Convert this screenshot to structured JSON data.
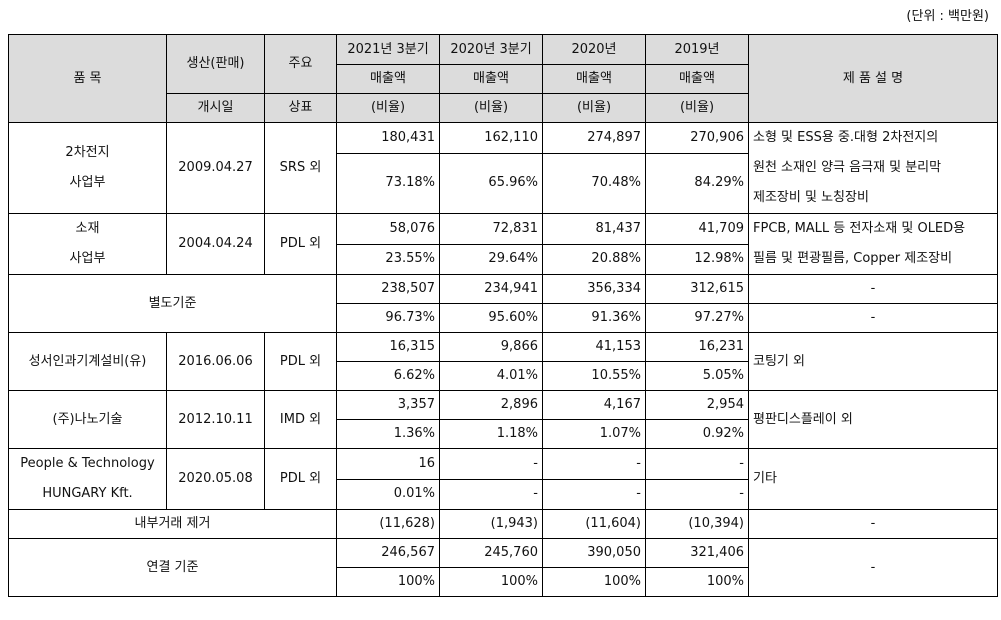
{
  "unit_label": "(단위 : 백만원)",
  "header": {
    "product": "품 목",
    "launch_top": "생산(판매)",
    "launch_bottom": "개시일",
    "brand_top": "주요",
    "brand_bottom": "상표",
    "col1_top": "2021년 3분기",
    "col1_mid": "매출액",
    "col2_top": "2020년 3분기",
    "col2_mid": "매출액",
    "col3_top": "2020년",
    "col3_mid": "매출액",
    "col4_top": "2019년",
    "col4_mid": "매출액",
    "ratio": "(비율)",
    "description": "제 품 설 명"
  },
  "rows": [
    {
      "name_l1": "2차전지",
      "name_l2": "사업부",
      "date": "2009.04.27",
      "brand": "SRS 외",
      "sales": [
        "180,431",
        "162,110",
        "274,897",
        "270,906"
      ],
      "ratio": [
        "73.18%",
        "65.96%",
        "70.48%",
        "84.29%"
      ],
      "desc": [
        "소형 및 ESS용 중.대형 2차전지의",
        "원천 소재인 양극 음극재 및 분리막",
        "제조장비 및 노칭장비"
      ]
    },
    {
      "name_l1": "소재",
      "name_l2": "사업부",
      "date": "2004.04.24",
      "brand": "PDL 외",
      "sales": [
        "58,076",
        "72,831",
        "81,437",
        "41,709"
      ],
      "ratio": [
        "23.55%",
        "29.64%",
        "20.88%",
        "12.98%"
      ],
      "desc": [
        "FPCB, MALL 등 전자소재 및 OLED용",
        "필름 및 편광필름, Copper 제조장비"
      ]
    },
    {
      "name": "별도기준",
      "sales": [
        "238,507",
        "234,941",
        "356,334",
        "312,615"
      ],
      "ratio": [
        "96.73%",
        "95.60%",
        "91.36%",
        "97.27%"
      ],
      "desc_top": "-",
      "desc_bottom": "-"
    },
    {
      "name": "성서인과기계설비(유)",
      "date": "2016.06.06",
      "brand": "PDL 외",
      "sales": [
        "16,315",
        "9,866",
        "41,153",
        "16,231"
      ],
      "ratio": [
        "6.62%",
        "4.01%",
        "10.55%",
        "5.05%"
      ],
      "desc": "코팅기 외"
    },
    {
      "name": "(주)나노기술",
      "date": "2012.10.11",
      "brand": "IMD 외",
      "sales": [
        "3,357",
        "2,896",
        "4,167",
        "2,954"
      ],
      "ratio": [
        "1.36%",
        "1.18%",
        "1.07%",
        "0.92%"
      ],
      "desc": "평판디스플레이 외"
    },
    {
      "name_l1": "People & Technology",
      "name_l2": "HUNGARY Kft.",
      "date": "2020.05.08",
      "brand": "PDL 외",
      "sales": [
        "16",
        "-",
        "-",
        "-"
      ],
      "ratio": [
        "0.01%",
        "-",
        "-",
        "-"
      ],
      "desc": "기타"
    },
    {
      "name": "내부거래 제거",
      "sales": [
        "(11,628)",
        "(1,943)",
        "(11,604)",
        "(10,394)"
      ],
      "desc": "-"
    },
    {
      "name": "연결 기준",
      "sales": [
        "246,567",
        "245,760",
        "390,050",
        "321,406"
      ],
      "ratio": [
        "100%",
        "100%",
        "100%",
        "100%"
      ],
      "desc": "-"
    }
  ]
}
